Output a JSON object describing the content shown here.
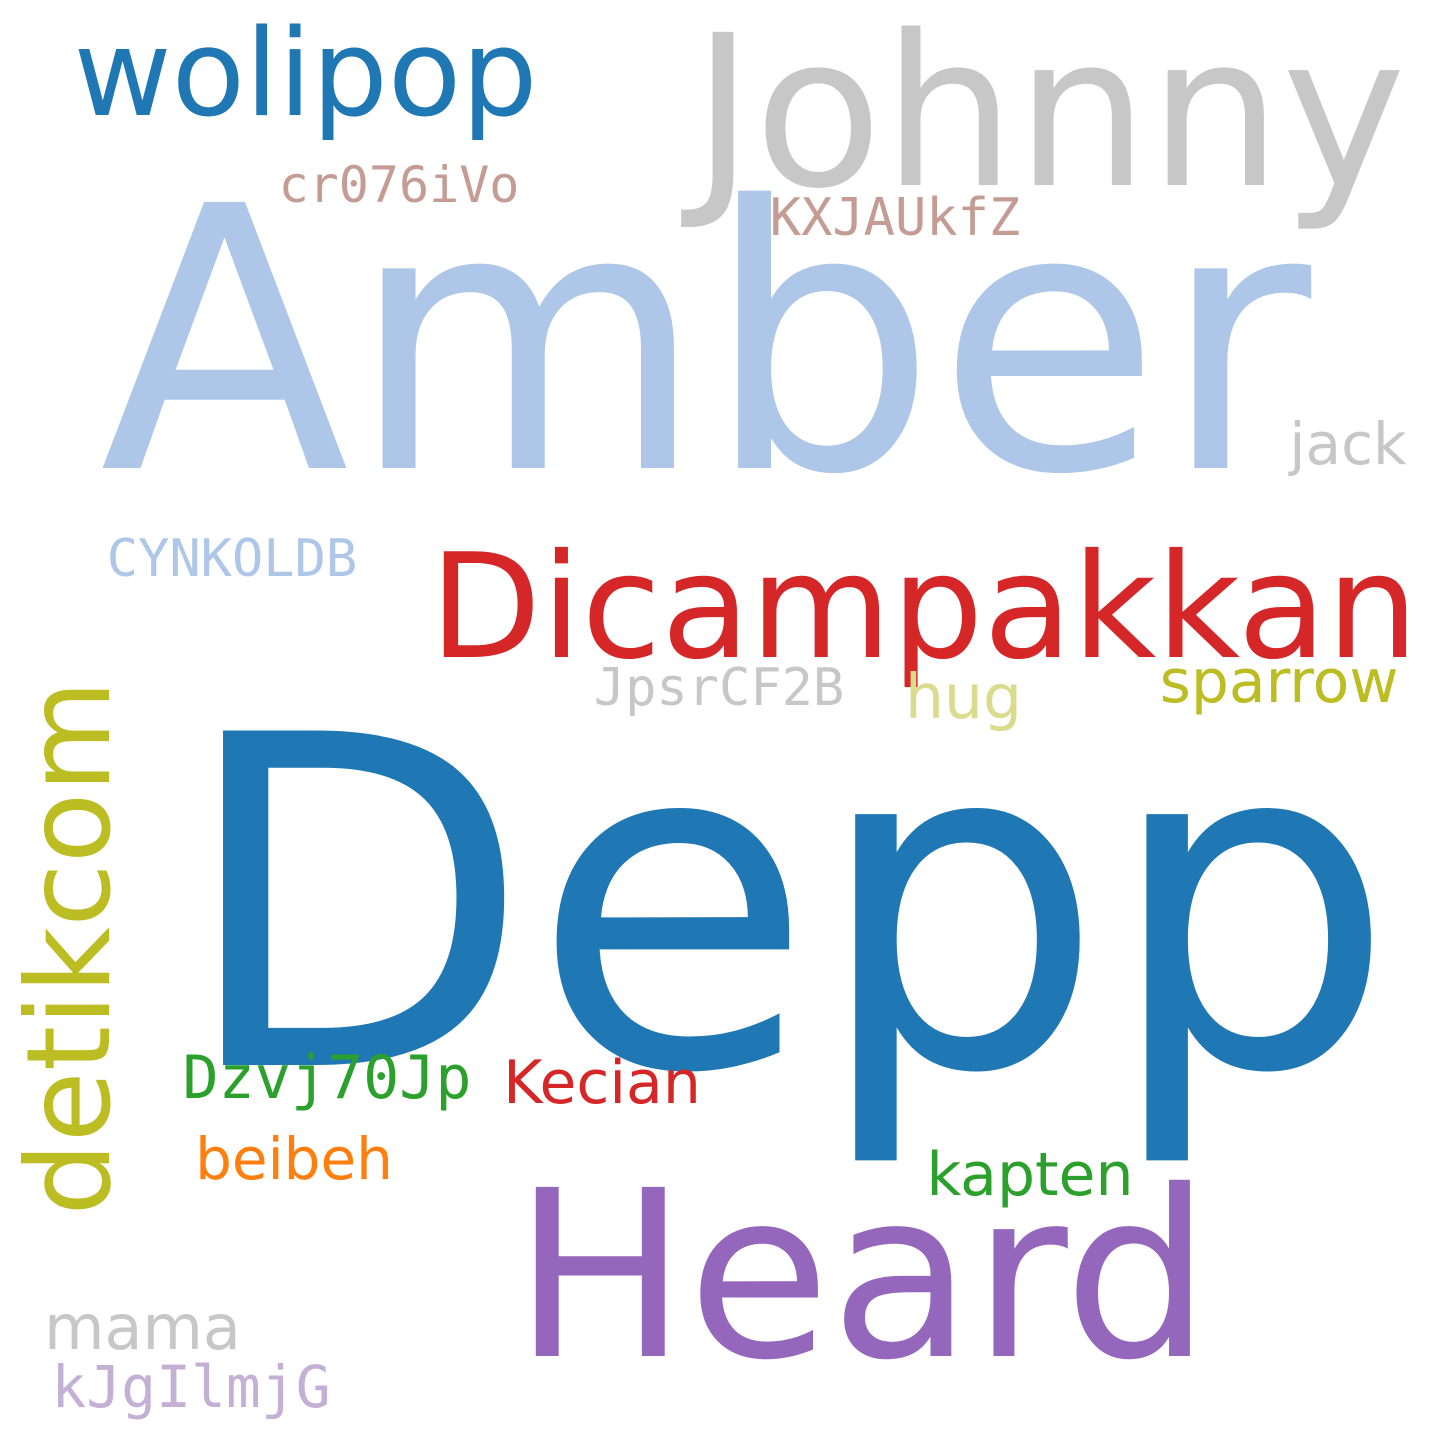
{
  "words": [
    {
      "id": "amber",
      "text": "Amber",
      "color": "#aec7e8",
      "orientation": "horizontal"
    },
    {
      "id": "depp",
      "text": "Depp",
      "color": "#1f77b4",
      "orientation": "horizontal"
    },
    {
      "id": "johnny",
      "text": "Johnny",
      "color": "#c7c7c7",
      "orientation": "horizontal"
    },
    {
      "id": "heard",
      "text": "Heard",
      "color": "#9467bd",
      "orientation": "horizontal"
    },
    {
      "id": "dicampakkan",
      "text": "Dicampakkan",
      "color": "#d62728",
      "orientation": "horizontal"
    },
    {
      "id": "detikcom",
      "text": "detikcom",
      "color": "#bcbd22",
      "orientation": "vertical"
    },
    {
      "id": "wolipop",
      "text": "wolipop",
      "color": "#1f77b4",
      "orientation": "horizontal"
    },
    {
      "id": "cr076ivo",
      "text": "cr076iVo",
      "color": "#c49c94",
      "orientation": "horizontal"
    },
    {
      "id": "kxjaukfz",
      "text": "KXJAUkfZ",
      "color": "#c49c94",
      "orientation": "horizontal"
    },
    {
      "id": "jack",
      "text": "jack",
      "color": "#c7c7c7",
      "orientation": "horizontal"
    },
    {
      "id": "cynkoldb",
      "text": "CYNKOLDB",
      "color": "#aec7e8",
      "orientation": "horizontal"
    },
    {
      "id": "jpsrcf2b",
      "text": "JpsrCF2B",
      "color": "#c7c7c7",
      "orientation": "horizontal"
    },
    {
      "id": "hug",
      "text": "hug",
      "color": "#dbdb8d",
      "orientation": "horizontal"
    },
    {
      "id": "sparrow",
      "text": "sparrow",
      "color": "#bcbd22",
      "orientation": "horizontal"
    },
    {
      "id": "dzvj70jp",
      "text": "Dzvj70Jp",
      "color": "#2ca02c",
      "orientation": "horizontal"
    },
    {
      "id": "kecian",
      "text": "Kecian",
      "color": "#d62728",
      "orientation": "horizontal"
    },
    {
      "id": "beibeh",
      "text": "beibeh",
      "color": "#ff7f0e",
      "orientation": "horizontal"
    },
    {
      "id": "kapten",
      "text": "kapten",
      "color": "#2ca02c",
      "orientation": "horizontal"
    },
    {
      "id": "mama",
      "text": "mama",
      "color": "#c7c7c7",
      "orientation": "horizontal"
    },
    {
      "id": "kjgilmjg",
      "text": "kJgIlmjG",
      "color": "#c5b0d5",
      "orientation": "horizontal"
    }
  ]
}
